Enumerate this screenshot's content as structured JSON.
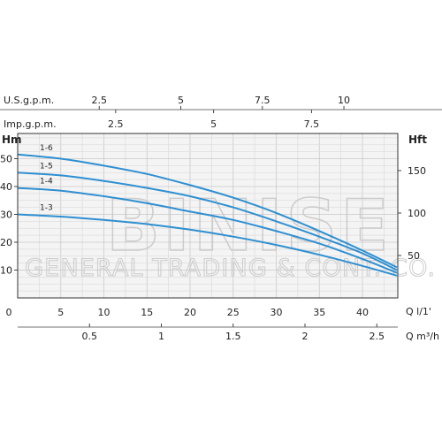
{
  "chart_data": {
    "type": "line",
    "scales": {
      "us_gpm": {
        "label": "U.S.g.p.m.",
        "ticks": [
          "2.5",
          "5",
          "7.5",
          "10"
        ],
        "values": [
          2.5,
          5,
          7.5,
          10
        ]
      },
      "imp_gpm": {
        "label": "Imp.g.p.m.",
        "ticks": [
          "2.5",
          "5",
          "7.5"
        ],
        "values": [
          2.5,
          5,
          7.5
        ]
      },
      "q_lmin": {
        "label": "Q  l/1'",
        "ticks": [
          "0",
          "5",
          "10",
          "15",
          "20",
          "25",
          "30",
          "35",
          "40"
        ],
        "values": [
          0,
          5,
          10,
          15,
          20,
          25,
          30,
          35,
          40
        ],
        "range": [
          0,
          44
        ]
      },
      "q_m3h": {
        "label": "Q  m³/h",
        "ticks": [
          "0.5",
          "1",
          "1.5",
          "2",
          "2.5"
        ],
        "values": [
          0.5,
          1,
          1.5,
          2,
          2.5
        ]
      },
      "hm": {
        "label": "Hm",
        "ticks": [
          "10",
          "20",
          "30",
          "40",
          "50"
        ],
        "values": [
          10,
          20,
          30,
          40,
          50
        ],
        "range": [
          0,
          55
        ]
      },
      "hft": {
        "label": "Hft",
        "ticks": [
          "50",
          "100",
          "150"
        ],
        "values": [
          50,
          100,
          150
        ]
      }
    },
    "series": [
      {
        "name": "1-6",
        "x": [
          0,
          5,
          10,
          15,
          20,
          25,
          30,
          35,
          40,
          44
        ],
        "y": [
          51.5,
          50,
          47.5,
          44.5,
          40.5,
          36,
          30.5,
          24,
          17,
          11
        ]
      },
      {
        "name": "1-5",
        "x": [
          0,
          5,
          10,
          15,
          20,
          25,
          30,
          35,
          40,
          44
        ],
        "y": [
          45,
          44,
          42,
          39.5,
          36.5,
          32.5,
          27.5,
          22,
          16,
          10
        ]
      },
      {
        "name": "1-4",
        "x": [
          0,
          5,
          10,
          15,
          20,
          25,
          30,
          35,
          40,
          44
        ],
        "y": [
          39.5,
          38.5,
          36.5,
          34,
          31,
          28,
          24,
          19.5,
          14,
          9
        ]
      },
      {
        "name": "1-3",
        "x": [
          0,
          5,
          10,
          15,
          20,
          25,
          30,
          35,
          40,
          44
        ],
        "y": [
          30,
          29.2,
          28,
          26.5,
          24.5,
          22,
          19,
          15.5,
          11.5,
          8
        ]
      }
    ],
    "grid": true,
    "line_color": "#2f8fd1"
  },
  "watermark": {
    "main": "BINISE",
    "sub": "GENERAL TRADING & CONT. CO."
  }
}
